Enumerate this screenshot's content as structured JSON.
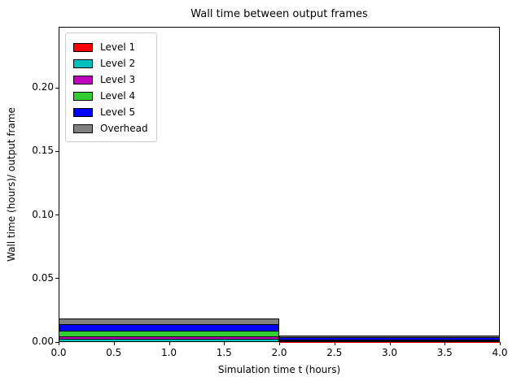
{
  "chart_data": {
    "type": "bar",
    "stacked": true,
    "title": "Wall time between output frames",
    "xlabel": "Simulation time t (hours)",
    "ylabel": "Wall time (hours)/ output frame",
    "xlim": [
      0.0,
      4.0
    ],
    "ylim": [
      0.0,
      0.248
    ],
    "x_ticks": [
      0.0,
      0.5,
      1.0,
      1.5,
      2.0,
      2.5,
      3.0,
      3.5,
      4.0
    ],
    "y_ticks": [
      0.0,
      0.05,
      0.1,
      0.15,
      0.2
    ],
    "grid": false,
    "legend_position": "upper left",
    "bar_edge_color": "#000000",
    "bar_intervals_x": [
      [
        0.0,
        2.0
      ],
      [
        2.0,
        4.0
      ]
    ],
    "series": [
      {
        "name": "Level 1",
        "color": "#ff0000",
        "values": [
          0.0005,
          0.0002
        ]
      },
      {
        "name": "Level 2",
        "color": "#00bfbf",
        "values": [
          0.0015,
          0.0003
        ]
      },
      {
        "name": "Level 3",
        "color": "#bf00bf",
        "values": [
          0.0019,
          0.0004
        ]
      },
      {
        "name": "Level 4",
        "color": "#32cd32",
        "values": [
          0.0045,
          0.0006
        ]
      },
      {
        "name": "Level 5",
        "color": "#0000ff",
        "values": [
          0.0051,
          0.002
        ]
      },
      {
        "name": "Overhead",
        "color": "#808080",
        "values": [
          0.0048,
          0.001
        ]
      }
    ]
  },
  "axes": {
    "x_tick_labels": [
      "0.0",
      "0.5",
      "1.0",
      "1.5",
      "2.0",
      "2.5",
      "3.0",
      "3.5",
      "4.0"
    ],
    "y_tick_labels": [
      "0.00",
      "0.05",
      "0.10",
      "0.15",
      "0.20"
    ]
  },
  "colors": {
    "background": "#ffffff",
    "axis": "#000000",
    "text": "#000000",
    "legend_border": "#cccccc"
  }
}
